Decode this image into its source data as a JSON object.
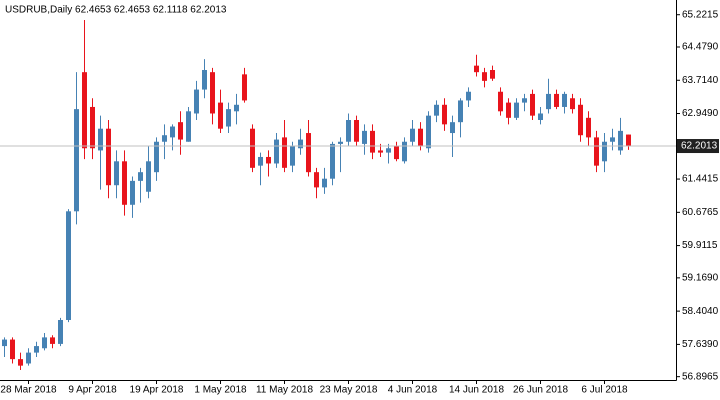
{
  "chart_data": {
    "type": "candlestick",
    "title": "USDRUB,Daily  62.4653 62.4653 62.1118 62.2013",
    "categories": [
      null,
      null,
      null,
      "28 Mar 2018",
      null,
      null,
      null,
      null,
      null,
      null,
      null,
      "9 Apr 2018",
      null,
      null,
      null,
      null,
      null,
      null,
      null,
      "19 Apr 2018",
      null,
      null,
      null,
      null,
      null,
      null,
      null,
      "1 May 2018",
      null,
      null,
      null,
      null,
      null,
      null,
      null,
      "11 May 2018",
      null,
      null,
      null,
      null,
      null,
      null,
      null,
      "23 May 2018",
      null,
      null,
      null,
      null,
      null,
      null,
      null,
      "4 Jun 2018",
      null,
      null,
      null,
      null,
      null,
      null,
      null,
      "14 Jun 2018",
      null,
      null,
      null,
      null,
      null,
      null,
      null,
      "26 Jun 2018",
      null,
      null,
      null,
      null,
      null,
      null,
      null,
      "6 Jul 2018",
      null,
      null,
      null
    ],
    "open": [
      57.6,
      57.75,
      57.3,
      57.2,
      57.45,
      57.55,
      57.8,
      57.65,
      58.2,
      60.7,
      63.9,
      63.1,
      62.1,
      62.6,
      61.3,
      61.85,
      60.85,
      61.4,
      61.15,
      61.6,
      62.3,
      62.4,
      62.75,
      62.3,
      62.95,
      63.5,
      63.9,
      63.2,
      62.65,
      63.0,
      63.85,
      62.6,
      61.75,
      61.95,
      61.8,
      62.4,
      61.75,
      62.15,
      62.5,
      61.6,
      61.25,
      61.45,
      62.25,
      62.3,
      62.8,
      62.25,
      62.55,
      62.1,
      62.05,
      62.2,
      61.85,
      62.3,
      62.6,
      62.15,
      62.9,
      63.15,
      62.5,
      62.75,
      63.25,
      64.05,
      63.9,
      63.95,
      63.45,
      63.2,
      62.85,
      63.2,
      63.4,
      62.8,
      63.05,
      63.4,
      63.1,
      63.3,
      63.15,
      62.85,
      62.4,
      61.85,
      62.3,
      62.1,
      62.4653
    ],
    "high": [
      57.8,
      57.8,
      57.45,
      57.55,
      57.7,
      57.9,
      57.85,
      58.25,
      60.75,
      63.9,
      65.1,
      63.3,
      62.9,
      62.8,
      62.1,
      62.1,
      61.5,
      61.7,
      62.2,
      62.4,
      62.7,
      62.7,
      63.0,
      63.1,
      63.7,
      64.2,
      64.0,
      63.5,
      63.2,
      63.4,
      64.0,
      62.7,
      62.05,
      62.1,
      62.5,
      62.8,
      62.3,
      62.6,
      62.8,
      61.7,
      61.7,
      62.3,
      62.4,
      62.95,
      62.9,
      62.7,
      62.7,
      62.25,
      62.25,
      62.3,
      62.4,
      62.8,
      62.75,
      63.0,
      63.25,
      63.3,
      62.9,
      63.3,
      63.55,
      64.3,
      64.0,
      64.05,
      63.55,
      63.3,
      63.3,
      63.4,
      63.5,
      63.1,
      63.75,
      63.5,
      63.45,
      63.4,
      63.3,
      63.0,
      62.55,
      62.5,
      62.6,
      62.85,
      62.4653
    ],
    "low": [
      57.35,
      57.2,
      57.05,
      57.15,
      57.35,
      57.5,
      57.55,
      57.6,
      58.15,
      60.4,
      61.9,
      61.9,
      61.2,
      61.0,
      61.0,
      60.6,
      60.55,
      60.9,
      61.0,
      61.4,
      61.9,
      62.1,
      62.0,
      62.3,
      62.8,
      63.3,
      62.7,
      62.5,
      62.5,
      62.7,
      63.2,
      61.6,
      61.3,
      61.5,
      61.7,
      61.6,
      61.6,
      62.0,
      61.5,
      61.0,
      61.1,
      61.3,
      61.6,
      62.2,
      62.2,
      62.0,
      61.9,
      61.95,
      61.8,
      61.85,
      61.8,
      62.2,
      62.1,
      62.05,
      62.75,
      62.55,
      61.95,
      62.4,
      63.1,
      63.8,
      63.55,
      63.7,
      62.9,
      62.7,
      62.8,
      63.0,
      62.8,
      62.7,
      62.95,
      63.05,
      62.95,
      62.95,
      62.3,
      62.2,
      61.6,
      61.6,
      62.1,
      62.0,
      62.1118
    ],
    "close": [
      57.75,
      57.3,
      57.15,
      57.45,
      57.6,
      57.8,
      57.65,
      58.2,
      60.7,
      63.05,
      62.15,
      62.15,
      62.6,
      61.3,
      61.85,
      60.85,
      61.4,
      61.6,
      61.85,
      62.3,
      62.45,
      62.65,
      62.35,
      63.0,
      63.5,
      63.95,
      62.95,
      62.6,
      63.05,
      63.15,
      63.25,
      61.7,
      61.95,
      61.8,
      62.35,
      61.7,
      62.2,
      62.35,
      61.6,
      61.25,
      61.45,
      62.25,
      62.3,
      62.8,
      62.3,
      62.55,
      62.05,
      62.05,
      62.15,
      61.9,
      62.3,
      62.6,
      62.2,
      62.9,
      63.15,
      62.7,
      62.75,
      63.25,
      63.45,
      63.9,
      63.7,
      63.75,
      63.0,
      62.85,
      63.2,
      63.3,
      62.9,
      62.95,
      63.4,
      63.1,
      63.4,
      63.05,
      62.45,
      62.4,
      61.75,
      62.3,
      62.4,
      62.55,
      62.2013
    ],
    "up_color": "#4682b4",
    "down_color": "#e8141c",
    "last_price": 62.2013,
    "ylim": [
      56.82,
      65.56
    ],
    "yticks": [
      65.2215,
      {
        "value": 64.479,
        "label": "64.4790"
      },
      {
        "value": 63.714,
        "label": "63.7140"
      },
      {
        "value": 62.949,
        "label": "62.9490"
      },
      61.4415,
      60.6765,
      59.9115,
      {
        "value": 59.169,
        "label": "59.1690"
      },
      {
        "value": 58.404,
        "label": "58.4040"
      },
      {
        "value": 57.639,
        "label": "57.6390"
      },
      56.8965
    ]
  }
}
